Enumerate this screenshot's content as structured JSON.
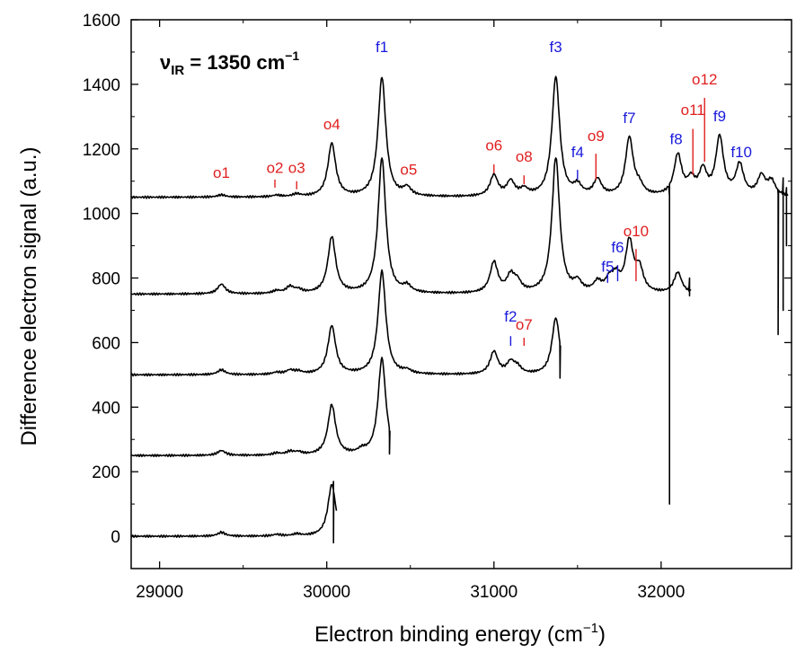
{
  "chart_data": {
    "type": "line",
    "title": "",
    "xlabel": "Electron binding energy (cm",
    "xlabel_sup": "−1",
    "xlabel_close": ")",
    "ylabel": "Difference electron signal (a.u.)",
    "xlim": [
      28830,
      32780
    ],
    "ylim": [
      -100,
      1600
    ],
    "xticks": [
      29000,
      30000,
      31000,
      32000
    ],
    "xtick_labels": [
      "29000",
      "30000",
      "31000",
      "32000"
    ],
    "yticks": [
      0,
      200,
      400,
      600,
      800,
      1000,
      1200,
      1400,
      1600
    ],
    "ytick_labels": [
      "0",
      "200",
      "400",
      "600",
      "800",
      "1000",
      "1200",
      "1400",
      "1600"
    ],
    "legend_main": "ν",
    "legend_sub": "IR",
    "legend_rest": " = 1350 cm",
    "legend_sup": "−1",
    "annotation_colors": {
      "f": "#1a1adc",
      "o": "#e02020"
    },
    "series": [
      {
        "baseline": 0,
        "x_end": 30060,
        "peaks": [
          [
            29370,
            12
          ],
          [
            29700,
            5
          ],
          [
            29820,
            6
          ],
          [
            30030,
            160
          ]
        ],
        "features": [
          [
            30040,
            170,
            -20
          ]
        ]
      },
      {
        "baseline": 250,
        "x_end": 30380,
        "peaks": [
          [
            29370,
            15
          ],
          [
            29700,
            6
          ],
          [
            29780,
            10
          ],
          [
            29830,
            8
          ],
          [
            30030,
            155
          ],
          [
            30210,
            12
          ],
          [
            30330,
            300
          ]
        ],
        "features": [
          [
            30375,
            305,
            255
          ]
        ]
      },
      {
        "baseline": 500,
        "x_end": 31400,
        "peaks": [
          [
            29370,
            15
          ],
          [
            29700,
            6
          ],
          [
            29780,
            12
          ],
          [
            29830,
            8
          ],
          [
            30030,
            150
          ],
          [
            30330,
            320
          ],
          [
            30480,
            10
          ],
          [
            31000,
            70
          ],
          [
            31100,
            35
          ],
          [
            31140,
            20
          ],
          [
            31370,
            175
          ]
        ],
        "features": [
          [
            31395,
            520,
            490
          ]
        ]
      },
      {
        "baseline": 750,
        "x_end": 32180,
        "peaks": [
          [
            29370,
            30
          ],
          [
            29700,
            8
          ],
          [
            29780,
            20
          ],
          [
            29830,
            10
          ],
          [
            30030,
            175
          ],
          [
            30330,
            420
          ],
          [
            30480,
            20
          ],
          [
            31000,
            95
          ],
          [
            31100,
            50
          ],
          [
            31140,
            30
          ],
          [
            31370,
            420
          ],
          [
            31500,
            30
          ],
          [
            31620,
            30
          ],
          [
            31690,
            35
          ],
          [
            31730,
            45
          ],
          [
            31810,
            155
          ],
          [
            31870,
            70
          ],
          [
            32100,
            65
          ]
        ],
        "features": [
          [
            32170,
            800,
            745
          ]
        ]
      },
      {
        "baseline": 1050,
        "x_end": 32760,
        "peaks": [
          [
            29370,
            7
          ],
          [
            29700,
            5
          ],
          [
            29820,
            8
          ],
          [
            30030,
            165
          ],
          [
            30330,
            370
          ],
          [
            30480,
            25
          ],
          [
            31000,
            65
          ],
          [
            31100,
            45
          ],
          [
            31180,
            20
          ],
          [
            31370,
            370
          ],
          [
            31500,
            30
          ],
          [
            31620,
            50
          ],
          [
            31810,
            180
          ],
          [
            31870,
            25
          ],
          [
            32100,
            125
          ],
          [
            32180,
            45
          ],
          [
            32250,
            75
          ],
          [
            32350,
            180
          ],
          [
            32470,
            95
          ],
          [
            32600,
            60
          ],
          [
            32660,
            45
          ]
        ],
        "features": [
          [
            32050,
            1055,
            100
          ],
          [
            32700,
            1060,
            625
          ],
          [
            32730,
            1110,
            700
          ],
          [
            32750,
            1080,
            900
          ]
        ]
      }
    ],
    "annotations": [
      {
        "label": "f1",
        "kind": "f",
        "x": 30330,
        "text_y": 1500
      },
      {
        "label": "f3",
        "kind": "f",
        "x": 31370,
        "text_y": 1500
      },
      {
        "label": "o1",
        "kind": "o",
        "x": 29370,
        "text_y": 1110
      },
      {
        "label": "o2",
        "kind": "o",
        "x": 29690,
        "text_y": 1125,
        "line": [
          1080,
          1105
        ]
      },
      {
        "label": "o3",
        "kind": "o",
        "x": 29820,
        "text_y": 1125,
        "line": [
          1075,
          1100
        ]
      },
      {
        "label": "o4",
        "kind": "o",
        "x": 30030,
        "text_y": 1260
      },
      {
        "label": "o5",
        "kind": "o",
        "x": 30490,
        "text_y": 1120
      },
      {
        "label": "o6",
        "kind": "o",
        "x": 31000,
        "text_y": 1195,
        "line": [
          1125,
          1152
        ]
      },
      {
        "label": "o8",
        "kind": "o",
        "x": 31180,
        "text_y": 1160,
        "line": [
          1090,
          1118
        ]
      },
      {
        "label": "f4",
        "kind": "f",
        "x": 31500,
        "text_y": 1175,
        "line": [
          1105,
          1135
        ]
      },
      {
        "label": "o9",
        "kind": "o",
        "x": 31610,
        "text_y": 1225,
        "line": [
          1105,
          1185
        ]
      },
      {
        "label": "f7",
        "kind": "f",
        "x": 31810,
        "text_y": 1280
      },
      {
        "label": "f8",
        "kind": "f",
        "x": 32090,
        "text_y": 1215
      },
      {
        "label": "o11",
        "kind": "o",
        "x": 32190,
        "text_y": 1305,
        "line": [
          1120,
          1262
        ]
      },
      {
        "label": "o12",
        "kind": "o",
        "x": 32260,
        "text_y": 1400,
        "line": [
          1160,
          1358
        ]
      },
      {
        "label": "f9",
        "kind": "f",
        "x": 32350,
        "text_y": 1285
      },
      {
        "label": "f10",
        "kind": "f",
        "x": 32480,
        "text_y": 1175
      },
      {
        "label": "o10",
        "kind": "o",
        "x": 31850,
        "text_y": 930,
        "line": [
          790,
          890
        ]
      },
      {
        "label": "f6",
        "kind": "f",
        "x": 31740,
        "text_y": 880,
        "line": [
          790,
          840
        ]
      },
      {
        "label": "f5",
        "kind": "f",
        "x": 31680,
        "text_y": 820,
        "line": [
          785,
          815
        ]
      },
      {
        "label": "f2",
        "kind": "f",
        "x": 31100,
        "text_y": 665,
        "line": [
          590,
          620
        ]
      },
      {
        "label": "o7",
        "kind": "o",
        "x": 31180,
        "text_y": 640,
        "line": [
          590,
          615
        ]
      }
    ]
  }
}
